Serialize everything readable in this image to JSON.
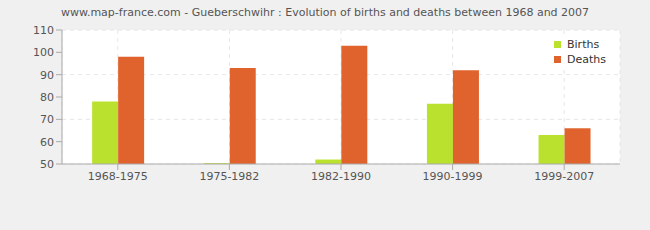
{
  "chart_data": {
    "type": "bar",
    "title": "www.map-france.com - Gueberschwihr : Evolution of births and deaths between 1968 and 2007",
    "categories": [
      "1968-1975",
      "1975-1982",
      "1982-1990",
      "1990-1999",
      "1999-2007"
    ],
    "series": [
      {
        "name": "Births",
        "color": "#b9e12e",
        "values": [
          78,
          50.4,
          52,
          77,
          63
        ]
      },
      {
        "name": "Deaths",
        "color": "#e0622d",
        "values": [
          98,
          93,
          103,
          92,
          66
        ]
      }
    ],
    "ylim": [
      50,
      110
    ],
    "yticks": [
      50,
      60,
      70,
      80,
      90,
      100,
      110
    ],
    "grid": true,
    "legend": "top-right"
  }
}
